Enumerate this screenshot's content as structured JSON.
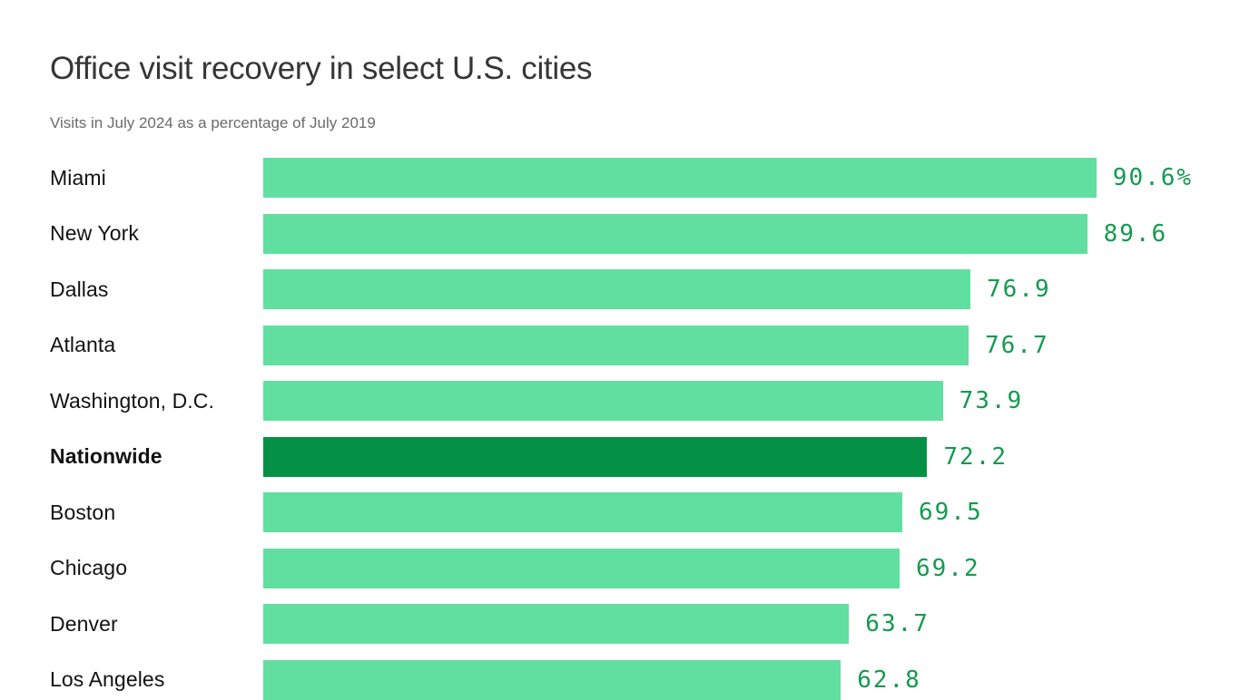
{
  "chart_data": {
    "type": "bar",
    "orientation": "horizontal",
    "title": "Office visit recovery in select U.S. cities",
    "subtitle": "Visits in July 2024 as a percentage of July 2019",
    "unit": "%",
    "xlim": [
      0,
      92
    ],
    "grid": false,
    "legend": false,
    "highlight_label": "Nationwide",
    "categories": [
      "Miami",
      "New York",
      "Dallas",
      "Atlanta",
      "Washington, D.C.",
      "Nationwide",
      "Boston",
      "Chicago",
      "Denver",
      "Los Angeles"
    ],
    "values": [
      90.6,
      89.6,
      76.9,
      76.7,
      73.9,
      72.2,
      69.5,
      69.2,
      63.7,
      62.8
    ],
    "bars": [
      {
        "label": "Miami",
        "value": 90.6,
        "display": "90.6%",
        "highlight": false,
        "bold": false
      },
      {
        "label": "New York",
        "value": 89.6,
        "display": "89.6",
        "highlight": false,
        "bold": false
      },
      {
        "label": "Dallas",
        "value": 76.9,
        "display": "76.9",
        "highlight": false,
        "bold": false
      },
      {
        "label": "Atlanta",
        "value": 76.7,
        "display": "76.7",
        "highlight": false,
        "bold": false
      },
      {
        "label": "Washington, D.C.",
        "value": 73.9,
        "display": "73.9",
        "highlight": false,
        "bold": false
      },
      {
        "label": "Nationwide",
        "value": 72.2,
        "display": "72.2",
        "highlight": true,
        "bold": true
      },
      {
        "label": "Boston",
        "value": 69.5,
        "display": "69.5",
        "highlight": false,
        "bold": false
      },
      {
        "label": "Chicago",
        "value": 69.2,
        "display": "69.2",
        "highlight": false,
        "bold": false
      },
      {
        "label": "Denver",
        "value": 63.7,
        "display": "63.7",
        "highlight": false,
        "bold": false
      },
      {
        "label": "Los Angeles",
        "value": 62.8,
        "display": "62.8",
        "highlight": false,
        "bold": false
      }
    ],
    "colors": {
      "bar": "#61DFA0",
      "highlight_bar": "#049146",
      "value_text": "#149A4F",
      "title_text": "#363636",
      "subtitle_text": "#6B6B6B",
      "label_text": "#121212",
      "background": "#FFFFFF"
    }
  }
}
